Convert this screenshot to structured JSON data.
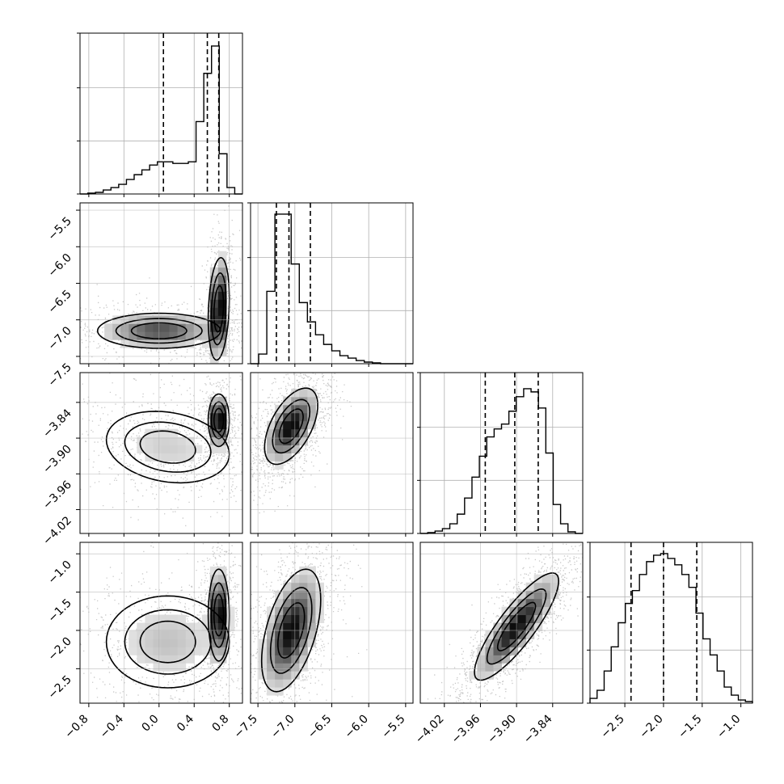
{
  "chart_data": {
    "type": "corner",
    "grid": true,
    "params": [
      {
        "range": [
          -0.9,
          0.95
        ],
        "ticks": [
          "−0.8",
          "−0.4",
          "0.0",
          "0.4",
          "0.8"
        ],
        "tick_values": [
          -0.8,
          -0.4,
          0.0,
          0.4,
          0.8
        ],
        "quantiles": [
          0.05,
          0.55,
          0.68
        ]
      },
      {
        "range": [
          -7.6,
          -5.4
        ],
        "ticks": [
          "−7.5",
          "−7.0",
          "−6.5",
          "−6.0",
          "−5.5"
        ],
        "tick_values": [
          -7.5,
          -7.0,
          -6.5,
          -6.0,
          -5.5
        ],
        "quantiles": [
          -7.25,
          -7.08,
          -6.79
        ]
      },
      {
        "range": [
          -4.06,
          -3.79
        ],
        "ticks": [
          "−4.02",
          "−3.96",
          "−3.90",
          "−3.84"
        ],
        "tick_values": [
          -4.02,
          -3.96,
          -3.9,
          -3.84
        ],
        "quantiles": [
          -3.952,
          -3.903,
          -3.864
        ]
      },
      {
        "range": [
          -2.95,
          -0.85
        ],
        "ticks": [
          "−2.5",
          "−2.0",
          "−1.5",
          "−1.0"
        ],
        "tick_values": [
          -2.5,
          -2.0,
          -1.5,
          -1.0
        ],
        "quantiles": [
          -2.42,
          -2.0,
          -1.57
        ]
      }
    ],
    "histograms": [
      [
        0.0,
        0.005,
        0.01,
        0.025,
        0.04,
        0.06,
        0.09,
        0.12,
        0.15,
        0.18,
        0.2,
        0.2,
        0.19,
        0.19,
        0.2,
        0.45,
        0.75,
        0.92,
        0.25,
        0.04,
        0.0
      ],
      [
        0.0,
        0.06,
        0.45,
        0.93,
        0.93,
        0.62,
        0.38,
        0.26,
        0.18,
        0.12,
        0.08,
        0.05,
        0.035,
        0.02,
        0.01,
        0.005,
        0.0,
        0.0,
        0.0,
        0.0
      ],
      [
        0.0,
        0.005,
        0.015,
        0.03,
        0.06,
        0.12,
        0.22,
        0.35,
        0.48,
        0.6,
        0.65,
        0.68,
        0.76,
        0.85,
        0.9,
        0.88,
        0.78,
        0.5,
        0.18,
        0.06,
        0.01,
        0.0
      ],
      [
        0.03,
        0.08,
        0.2,
        0.35,
        0.5,
        0.62,
        0.7,
        0.8,
        0.88,
        0.92,
        0.93,
        0.9,
        0.86,
        0.8,
        0.72,
        0.56,
        0.4,
        0.3,
        0.2,
        0.1,
        0.05,
        0.02,
        0.01
      ]
    ],
    "hist_ymax": 1.0,
    "hist_yticks": [
      0.33,
      0.66
    ],
    "pairs": [
      {
        "row": 1,
        "col": 0,
        "clusters": [
          {
            "mx": 0.0,
            "my": -7.15,
            "sx": 0.35,
            "sy": 0.12,
            "w": 0.55,
            "rho": 0.0
          },
          {
            "mx": 0.68,
            "my": -6.85,
            "sx": 0.06,
            "sy": 0.35,
            "w": 0.45,
            "rho": 0.2
          }
        ]
      },
      {
        "row": 2,
        "col": 0,
        "clusters": [
          {
            "mx": 0.1,
            "my": -3.915,
            "sx": 0.35,
            "sy": 0.03,
            "w": 0.55,
            "rho": -0.2
          },
          {
            "mx": 0.68,
            "my": -3.87,
            "sx": 0.06,
            "sy": 0.022,
            "w": 0.45,
            "rho": 0.0
          }
        ]
      },
      {
        "row": 2,
        "col": 1,
        "clusters": [
          {
            "mx": -7.05,
            "my": -3.88,
            "sx": 0.18,
            "sy": 0.032,
            "w": 1.0,
            "rho": 0.55
          }
        ]
      },
      {
        "row": 3,
        "col": 0,
        "clusters": [
          {
            "mx": 0.1,
            "my": -2.15,
            "sx": 0.35,
            "sy": 0.3,
            "w": 0.55,
            "rho": 0.0
          },
          {
            "mx": 0.68,
            "my": -1.8,
            "sx": 0.06,
            "sy": 0.3,
            "w": 0.45,
            "rho": 0.0
          }
        ]
      },
      {
        "row": 3,
        "col": 1,
        "clusters": [
          {
            "mx": -7.05,
            "my": -2.0,
            "sx": 0.2,
            "sy": 0.4,
            "w": 1.0,
            "rho": 0.5
          }
        ]
      },
      {
        "row": 3,
        "col": 2,
        "clusters": [
          {
            "mx": -3.9,
            "my": -1.95,
            "sx": 0.035,
            "sy": 0.35,
            "w": 1.0,
            "rho": 0.85
          }
        ]
      }
    ]
  }
}
